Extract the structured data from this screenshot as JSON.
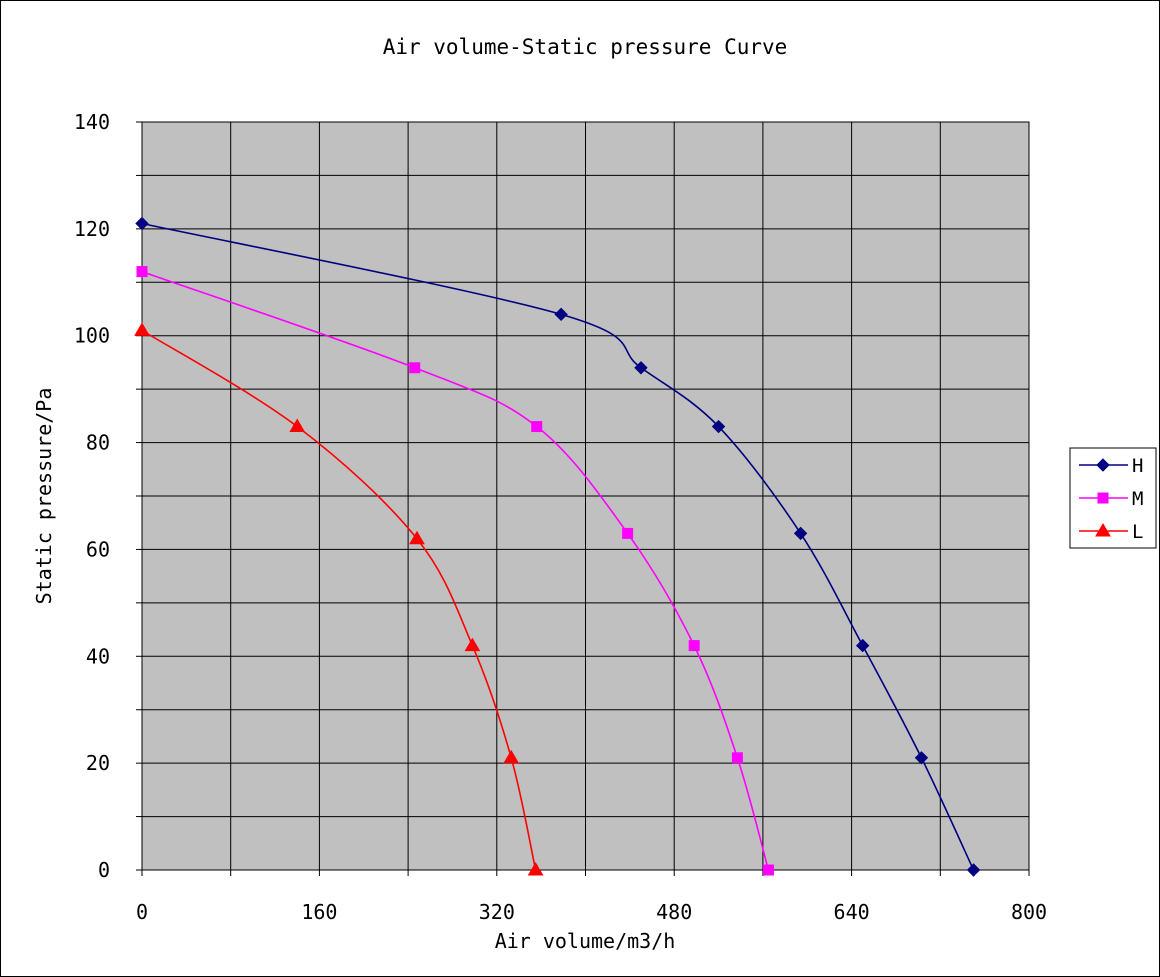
{
  "chart_data": {
    "type": "line",
    "title": "Air volume-Static pressure Curve",
    "xlabel": "Air volume/m3/h",
    "ylabel": "Static pressure/Pa",
    "xlim": [
      0,
      800
    ],
    "ylim": [
      0,
      140
    ],
    "x_ticks": [
      0,
      160,
      320,
      480,
      640,
      800
    ],
    "y_ticks": [
      0,
      20,
      40,
      60,
      80,
      100,
      120,
      140
    ],
    "x_gridlines": [
      0,
      80,
      160,
      240,
      320,
      400,
      480,
      560,
      640,
      720,
      800
    ],
    "y_gridlines": [
      0,
      10,
      20,
      30,
      40,
      50,
      60,
      70,
      80,
      90,
      100,
      110,
      120,
      130,
      140
    ],
    "grid": true,
    "plot_background": "#c0c0c0",
    "legend_position": "right",
    "series": [
      {
        "name": "H",
        "color": "#000080",
        "marker": "diamond",
        "x": [
          0,
          378,
          450,
          520,
          594,
          650,
          703,
          750
        ],
        "y": [
          121,
          104,
          94,
          83,
          63,
          42,
          21,
          0
        ]
      },
      {
        "name": "M",
        "color": "#ff00ff",
        "marker": "square",
        "x": [
          0,
          246,
          356,
          438,
          498,
          537,
          565
        ],
        "y": [
          112,
          94,
          83,
          63,
          42,
          21,
          0
        ]
      },
      {
        "name": "L",
        "color": "#ff0000",
        "marker": "triangle",
        "x": [
          0,
          140,
          248,
          298,
          333,
          355
        ],
        "y": [
          101,
          83,
          62,
          42,
          21,
          0
        ]
      }
    ]
  }
}
